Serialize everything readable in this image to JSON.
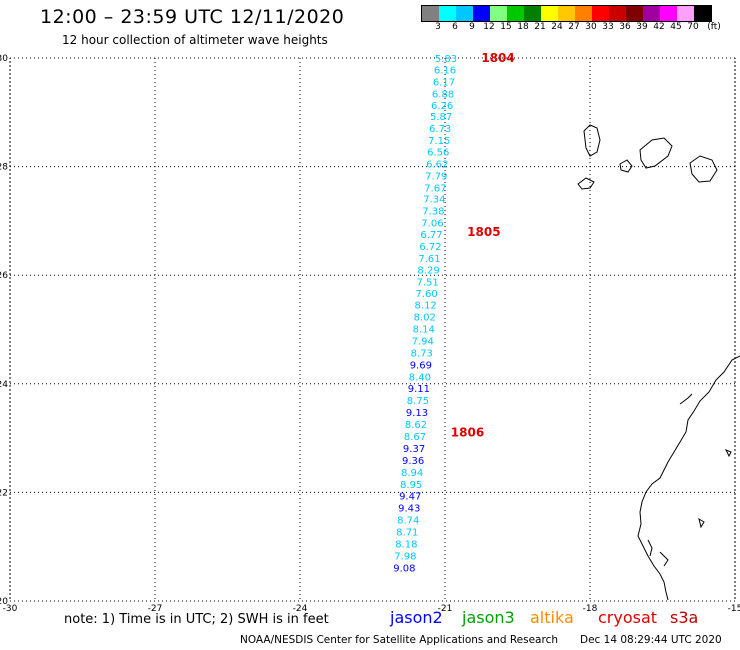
{
  "header": {
    "title": "12:00 – 23:59 UTC 12/11/2020",
    "subtitle": "12 hour collection of altimeter wave heights"
  },
  "colorbar": {
    "colors": [
      "#808080",
      "#00ffff",
      "#00c8ff",
      "#0000ff",
      "#80ff80",
      "#00c800",
      "#008000",
      "#ffff00",
      "#ffc800",
      "#ff8000",
      "#ff0000",
      "#c80000",
      "#800000",
      "#a000a0",
      "#ff00ff",
      "#ffa0ff",
      "#000000"
    ],
    "labels": [
      "3",
      "6",
      "9",
      "12",
      "15",
      "18",
      "21",
      "24",
      "27",
      "30",
      "33",
      "36",
      "39",
      "42",
      "45",
      "70",
      "(ft)"
    ]
  },
  "axes": {
    "x_ticks": [
      "-30",
      "-27",
      "-24",
      "-21",
      "-18",
      "-15"
    ],
    "y_ticks": [
      "30",
      "28",
      "26",
      "24",
      "22",
      "20"
    ],
    "lon_range": [
      -30,
      -15
    ],
    "lat_range": [
      20,
      30
    ],
    "grid": true
  },
  "orbits": [
    {
      "label": "1804",
      "lat": 30.0
    },
    {
      "label": "1805",
      "lat": 26.8
    },
    {
      "label": "1806",
      "lat": 23.1
    }
  ],
  "track_points": [
    {
      "lat": 29.98,
      "lon": -20.98,
      "value": "5.83",
      "color": "#00c8ff"
    },
    {
      "lat": 29.77,
      "lon": -21.0,
      "value": "6.16",
      "color": "#00c8ff"
    },
    {
      "lat": 29.55,
      "lon": -21.02,
      "value": "6.17",
      "color": "#00c8ff"
    },
    {
      "lat": 29.33,
      "lon": -21.04,
      "value": "6.88",
      "color": "#00c8ff"
    },
    {
      "lat": 29.12,
      "lon": -21.06,
      "value": "6.26",
      "color": "#00c8ff"
    },
    {
      "lat": 28.91,
      "lon": -21.08,
      "value": "5.87",
      "color": "#00c8ff"
    },
    {
      "lat": 28.69,
      "lon": -21.1,
      "value": "6.73",
      "color": "#00c8ff"
    },
    {
      "lat": 28.47,
      "lon": -21.12,
      "value": "7.15",
      "color": "#00c8ff"
    },
    {
      "lat": 28.26,
      "lon": -21.14,
      "value": "6.56",
      "color": "#00c8ff"
    },
    {
      "lat": 28.04,
      "lon": -21.16,
      "value": "6.62",
      "color": "#00c8ff"
    },
    {
      "lat": 27.82,
      "lon": -21.18,
      "value": "7.79",
      "color": "#00c8ff"
    },
    {
      "lat": 27.6,
      "lon": -21.2,
      "value": "7.67",
      "color": "#00c8ff"
    },
    {
      "lat": 27.39,
      "lon": -21.22,
      "value": "7.34",
      "color": "#00c8ff"
    },
    {
      "lat": 27.17,
      "lon": -21.24,
      "value": "7.38",
      "color": "#00c8ff"
    },
    {
      "lat": 26.95,
      "lon": -21.26,
      "value": "7.06",
      "color": "#00c8ff"
    },
    {
      "lat": 26.74,
      "lon": -21.28,
      "value": "6.77",
      "color": "#00c8ff"
    },
    {
      "lat": 26.52,
      "lon": -21.3,
      "value": "6.72",
      "color": "#00c8ff"
    },
    {
      "lat": 26.3,
      "lon": -21.32,
      "value": "7.61",
      "color": "#00c8ff"
    },
    {
      "lat": 26.09,
      "lon": -21.34,
      "value": "8.29",
      "color": "#00c8ff"
    },
    {
      "lat": 25.87,
      "lon": -21.36,
      "value": "7.51",
      "color": "#00c8ff"
    },
    {
      "lat": 25.65,
      "lon": -21.38,
      "value": "7.60",
      "color": "#00c8ff"
    },
    {
      "lat": 25.44,
      "lon": -21.4,
      "value": "8.12",
      "color": "#00c8ff"
    },
    {
      "lat": 25.22,
      "lon": -21.42,
      "value": "8.02",
      "color": "#00c8ff"
    },
    {
      "lat": 25.0,
      "lon": -21.44,
      "value": "8.14",
      "color": "#00c8ff"
    },
    {
      "lat": 24.78,
      "lon": -21.46,
      "value": "7.94",
      "color": "#00c8ff"
    },
    {
      "lat": 24.56,
      "lon": -21.48,
      "value": "8.73",
      "color": "#00c8ff"
    },
    {
      "lat": 24.34,
      "lon": -21.5,
      "value": "9.69",
      "color": "#0000ff"
    },
    {
      "lat": 24.12,
      "lon": -21.52,
      "value": "8.40",
      "color": "#00c8ff"
    },
    {
      "lat": 23.9,
      "lon": -21.54,
      "value": "9.11",
      "color": "#0000ff"
    },
    {
      "lat": 23.68,
      "lon": -21.56,
      "value": "8.75",
      "color": "#00c8ff"
    },
    {
      "lat": 23.46,
      "lon": -21.58,
      "value": "9.13",
      "color": "#0000ff"
    },
    {
      "lat": 23.24,
      "lon": -21.6,
      "value": "8.62",
      "color": "#00c8ff"
    },
    {
      "lat": 23.02,
      "lon": -21.62,
      "value": "8.67",
      "color": "#00c8ff"
    },
    {
      "lat": 22.8,
      "lon": -21.64,
      "value": "9.37",
      "color": "#0000ff"
    },
    {
      "lat": 22.58,
      "lon": -21.66,
      "value": "9.36",
      "color": "#0000ff"
    },
    {
      "lat": 22.36,
      "lon": -21.68,
      "value": "8.94",
      "color": "#00c8ff"
    },
    {
      "lat": 22.14,
      "lon": -21.7,
      "value": "8.95",
      "color": "#00c8ff"
    },
    {
      "lat": 21.92,
      "lon": -21.72,
      "value": "9.47",
      "color": "#0000ff"
    },
    {
      "lat": 21.7,
      "lon": -21.74,
      "value": "9.43",
      "color": "#0000ff"
    },
    {
      "lat": 21.48,
      "lon": -21.76,
      "value": "8.74",
      "color": "#00c8ff"
    },
    {
      "lat": 21.26,
      "lon": -21.78,
      "value": "8.71",
      "color": "#00c8ff"
    },
    {
      "lat": 21.04,
      "lon": -21.8,
      "value": "8.18",
      "color": "#00c8ff"
    },
    {
      "lat": 20.82,
      "lon": -21.82,
      "value": "7.98",
      "color": "#00c8ff"
    },
    {
      "lat": 20.6,
      "lon": -21.84,
      "value": "9.08",
      "color": "#0000ff"
    }
  ],
  "orbit_color": "#e00000",
  "footer": {
    "note": "note:  1) Time is in UTC;  2) SWH is in feet",
    "missions": [
      {
        "name": "jason2",
        "color": "#0000ff"
      },
      {
        "name": "jason3",
        "color": "#00a000"
      },
      {
        "name": "altika",
        "color": "#ff8c00"
      },
      {
        "name": "cryosat",
        "color": "#e00000"
      },
      {
        "name": "s3a",
        "color": "#c00000"
      }
    ],
    "credit": "NOAA/NESDIS Center for Satellite Applications and Research",
    "timestamp": "Dec 14 08:29:44 UTC 2020"
  }
}
